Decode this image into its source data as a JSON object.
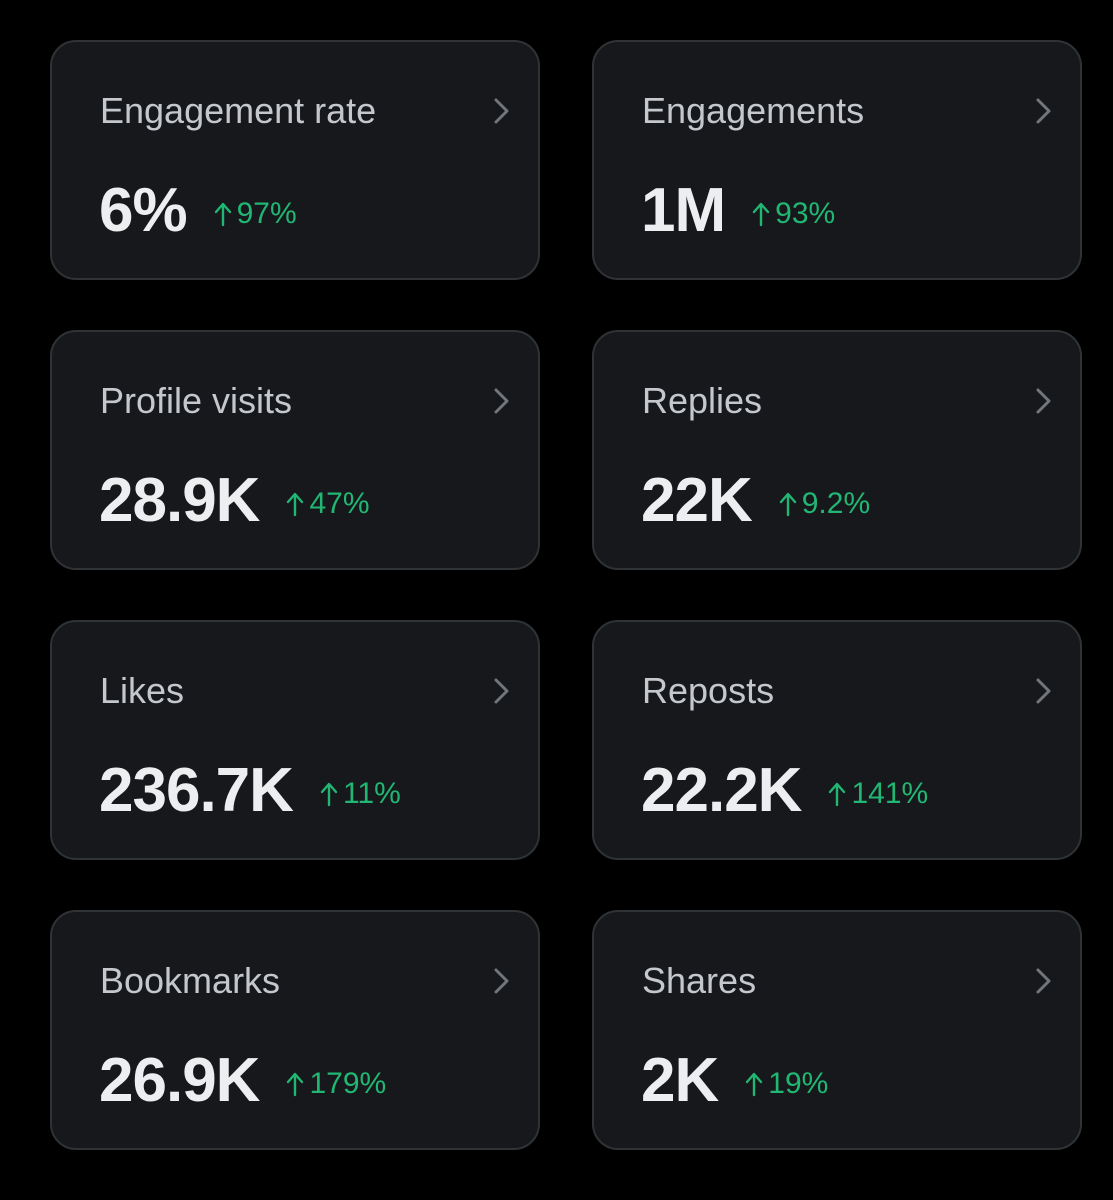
{
  "metrics": [
    {
      "label": "Engagement rate",
      "value": "6%",
      "change": "97%",
      "trend": "up"
    },
    {
      "label": "Engagements",
      "value": "1M",
      "change": "93%",
      "trend": "up"
    },
    {
      "label": "Profile visits",
      "value": "28.9K",
      "change": "47%",
      "trend": "up"
    },
    {
      "label": "Replies",
      "value": "22K",
      "change": "9.2%",
      "trend": "up"
    },
    {
      "label": "Likes",
      "value": "236.7K",
      "change": "11%",
      "trend": "up"
    },
    {
      "label": "Reposts",
      "value": "22.2K",
      "change": "141%",
      "trend": "up"
    },
    {
      "label": "Bookmarks",
      "value": "26.9K",
      "change": "179%",
      "trend": "up"
    },
    {
      "label": "Shares",
      "value": "2K",
      "change": "19%",
      "trend": "up"
    }
  ],
  "icons": {
    "trend": "arrow-up-icon",
    "navigate": "chevron-right-icon"
  },
  "colors": {
    "background": "#000000",
    "card_background": "#16181c",
    "card_border": "#2f3336",
    "label": "#c4c8cc",
    "value": "#eceef0",
    "positive_change": "#22b673",
    "chevron": "#71767b"
  }
}
